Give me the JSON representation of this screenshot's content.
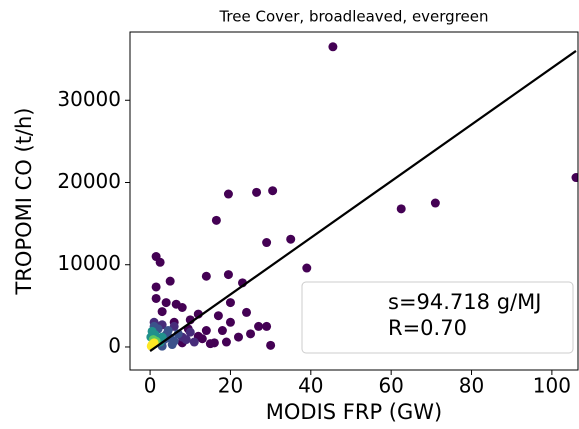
{
  "chart_data": {
    "type": "scatter",
    "title": "Tree Cover, broadleaved, evergreen",
    "x_label": "MODIS FRP (GW)",
    "y_label": "TROPOMI CO (t/h)",
    "annotations": [
      "s=94.718 g/MJ",
      "R=0.70"
    ],
    "xlim": [
      -5,
      106.5
    ],
    "ylim": [
      -2800,
      38300
    ],
    "xticks": [
      0,
      20,
      40,
      60,
      80,
      100
    ],
    "yticks": [
      0,
      10000,
      20000,
      30000
    ],
    "x": [
      45.5,
      106,
      71,
      62.5,
      30.5,
      26.5,
      19.5,
      16.5,
      35,
      29,
      39,
      19.5,
      14,
      23,
      1.5,
      2.5,
      5,
      1.5,
      20,
      1.5,
      4,
      6.5,
      8,
      12,
      17,
      24,
      27,
      29,
      25,
      30,
      22,
      19,
      16,
      14,
      10,
      6,
      3,
      9.5,
      20,
      18,
      13,
      8,
      12,
      15,
      11,
      10,
      9,
      8,
      6,
      3,
      1,
      7,
      4.5,
      2,
      6,
      5,
      4,
      3.5,
      5.5,
      3,
      1,
      3,
      2.5,
      2,
      1.2,
      0.5,
      0.2,
      0.8,
      1.5,
      1,
      0.5,
      0.3
    ],
    "values": [
      36500,
      20600,
      17500,
      16800,
      19000,
      18800,
      18600,
      15400,
      13100,
      12700,
      9600,
      8800,
      8600,
      7800,
      11000,
      10300,
      8000,
      7300,
      5400,
      5900,
      5400,
      5200,
      4800,
      4000,
      3800,
      4200,
      2500,
      2500,
      1600,
      200,
      1200,
      600,
      500,
      2000,
      3300,
      3000,
      4300,
      2200,
      3000,
      2000,
      1000,
      500,
      1300,
      400,
      600,
      1800,
      900,
      1200,
      2500,
      2700,
      3000,
      1600,
      2000,
      2200,
      700,
      1100,
      1500,
      900,
      300,
      100,
      2500,
      1200,
      600,
      1000,
      1500,
      1900,
      1200,
      900,
      700,
      500,
      300,
      100
    ],
    "colors": [
      "#440154",
      "#440154",
      "#440154",
      "#440154",
      "#440154",
      "#440154",
      "#440154",
      "#440154",
      "#440154",
      "#440154",
      "#440154",
      "#440154",
      "#440154",
      "#440154",
      "#440154",
      "#440154",
      "#440154",
      "#440154",
      "#440154",
      "#440154",
      "#440154",
      "#440154",
      "#440154",
      "#440154",
      "#440154",
      "#440154",
      "#440154",
      "#440154",
      "#440154",
      "#440154",
      "#440154",
      "#440154",
      "#440154",
      "#440154",
      "#440154",
      "#440154",
      "#440154",
      "#440154",
      "#440154",
      "#440154",
      "#440154",
      "#440154",
      "#440154",
      "#440154",
      "#472c7a",
      "#472c7a",
      "#472c7a",
      "#472c7a",
      "#472c7a",
      "#472c7a",
      "#472c7a",
      "#3b528b",
      "#3b528b",
      "#3b528b",
      "#3b528b",
      "#3b528b",
      "#3b528b",
      "#3b528b",
      "#3b528b",
      "#3b528b",
      "#3b528b",
      "#21918c",
      "#21918c",
      "#21918c",
      "#21918c",
      "#21918c",
      "#21918c",
      "#5ec962",
      "#5ec962",
      "#fde725",
      "#fde725",
      "#fde725"
    ],
    "fit_line": {
      "x": [
        0,
        106
      ],
      "y": [
        -500,
        36000
      ],
      "color": "#000000"
    }
  }
}
